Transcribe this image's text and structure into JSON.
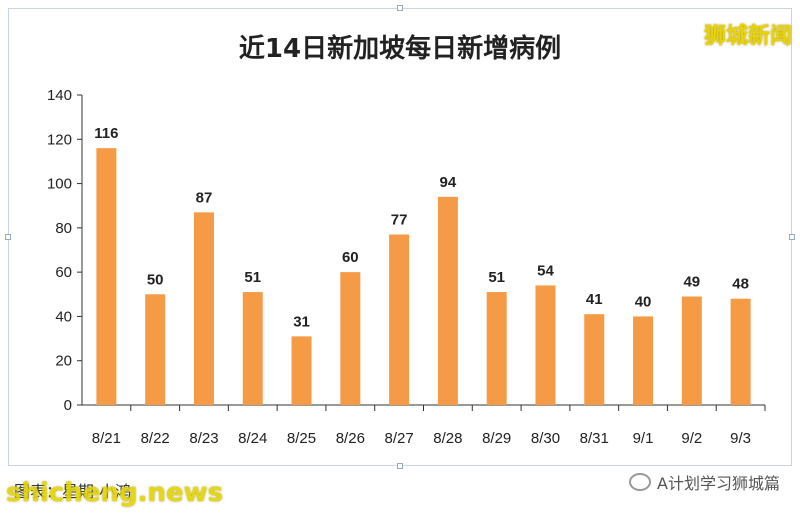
{
  "brand": "狮城新闻",
  "footer": "图表：星期·小鸿",
  "watermark": "shicheng.news",
  "wechat": "A计划学习狮城篇",
  "chart_data": {
    "type": "bar",
    "title": "近14日新加坡每日新增病例",
    "categories": [
      "8/21",
      "8/22",
      "8/23",
      "8/24",
      "8/25",
      "8/26",
      "8/27",
      "8/28",
      "8/29",
      "8/30",
      "8/31",
      "9/1",
      "9/2",
      "9/3"
    ],
    "values": [
      116,
      50,
      87,
      51,
      31,
      60,
      77,
      94,
      51,
      54,
      41,
      40,
      49,
      48
    ],
    "yticks": [
      "0",
      "20",
      "40",
      "60",
      "80",
      "100",
      "120",
      "140"
    ],
    "ylim": [
      0,
      140
    ],
    "bar_color": "#f59a45",
    "grid": false
  }
}
